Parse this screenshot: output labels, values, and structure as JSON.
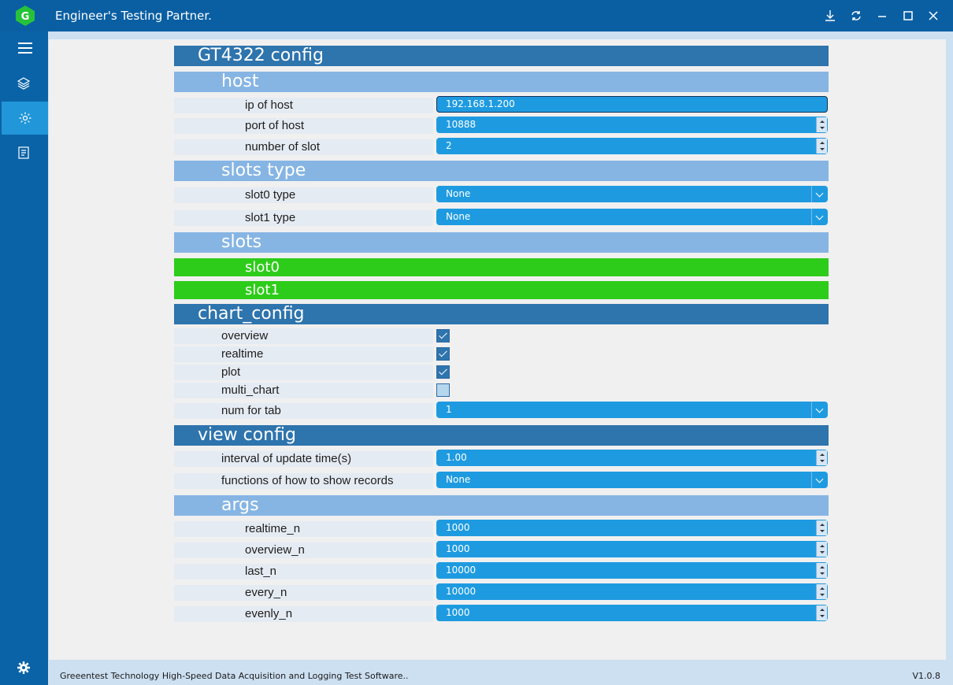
{
  "window": {
    "title": "Engineer's Testing Partner.",
    "icons": [
      "download-icon",
      "refresh-icon",
      "minimize-icon",
      "maximize-icon",
      "close-icon"
    ]
  },
  "sidebar": {
    "items": [
      "menu-icon",
      "layers-icon",
      "settings-icon",
      "document-icon"
    ],
    "active": "settings-icon",
    "bottom": "gear-icon"
  },
  "config": {
    "title": "GT4322 config",
    "host": {
      "heading": "host",
      "ip_label": "ip of host",
      "ip_value": "192.168.1.200",
      "port_label": "port of host",
      "port_value": "10888",
      "slot_count_label": "number of slot",
      "slot_count_value": "2"
    },
    "slots_type": {
      "heading": "slots type",
      "slot0_label": "slot0 type",
      "slot0_value": "None",
      "slot1_label": "slot1 type",
      "slot1_value": "None"
    },
    "slots": {
      "heading": "slots",
      "slot0": "slot0",
      "slot1": "slot1"
    },
    "chart_config": {
      "heading": "chart_config",
      "overview_label": "overview",
      "overview_checked": true,
      "realtime_label": "realtime",
      "realtime_checked": true,
      "plot_label": "plot",
      "plot_checked": true,
      "multi_chart_label": "multi_chart",
      "multi_chart_checked": false,
      "num_tab_label": "num for tab",
      "num_tab_value": "1"
    },
    "view_config": {
      "heading": "view config",
      "interval_label": "interval of update time(s)",
      "interval_value": "1.00",
      "functions_label": "functions of how to show records",
      "functions_value": "None"
    },
    "args": {
      "heading": "args",
      "realtime_n_label": "realtime_n",
      "realtime_n_value": "1000",
      "overview_n_label": "overview_n",
      "overview_n_value": "1000",
      "last_n_label": "last_n",
      "last_n_value": "10000",
      "every_n_label": "every_n",
      "every_n_value": "10000",
      "evenly_n_label": "evenly_n",
      "evenly_n_value": "1000"
    }
  },
  "footer": {
    "text": "Greeentest Technology High-Speed Data Acquisition and Logging Test Software..",
    "version": "V1.0.8"
  },
  "colors": {
    "titlebar": "#0a5fa3",
    "section_dark": "#2e74ad",
    "section_light": "#86b5e4",
    "section_green": "#2ecc1a",
    "control": "#1e9be0"
  }
}
